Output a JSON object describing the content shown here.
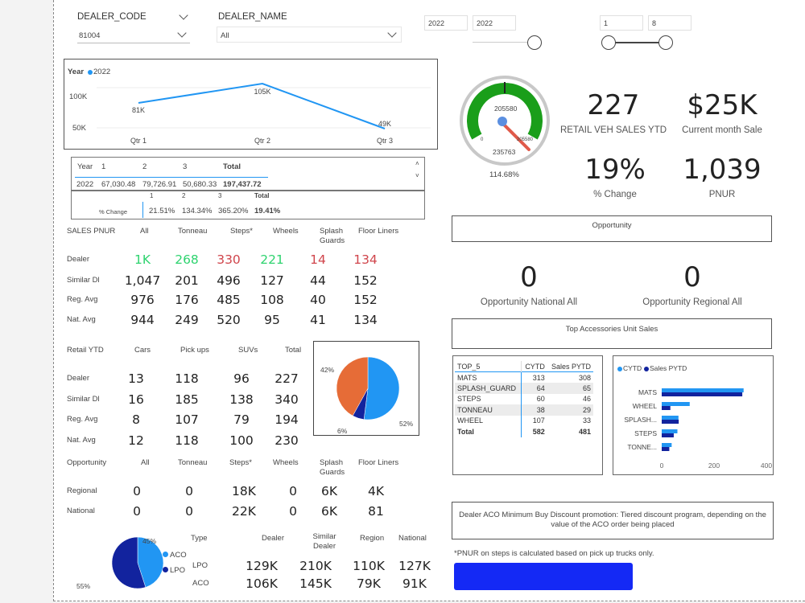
{
  "filters": {
    "dealer_code": {
      "label": "DEALER_CODE",
      "value": "81004"
    },
    "dealer_name": {
      "label": "DEALER_NAME",
      "value": "All"
    },
    "year_from": "2022",
    "year_to": "2022",
    "month_from": "1",
    "month_to": "8"
  },
  "line_chart": {
    "legend_title": "Year",
    "legend_item": "2022",
    "chart_data": {
      "type": "line",
      "categories": [
        "Qtr 1",
        "Qtr 2",
        "Qtr 3"
      ],
      "values": [
        81,
        105,
        49
      ],
      "value_labels": [
        "81K",
        "105K",
        "49K"
      ],
      "yticks": [
        "100K",
        "50K"
      ],
      "ylim": [
        30,
        120
      ]
    }
  },
  "year_table": {
    "headers": [
      "Year",
      "1",
      "2",
      "3",
      "Total"
    ],
    "row": [
      "2022",
      "67,030.48",
      "79,726.91",
      "50,680.33",
      "197,437.72"
    ]
  },
  "pct_table": {
    "headers": [
      "1",
      "2",
      "3",
      "Total"
    ],
    "row_label": "% Change",
    "row": [
      "21.51%",
      "134.34%",
      "365.20%",
      "19.41%"
    ]
  },
  "gauge": {
    "target": "205580",
    "max": "235763",
    "min": "0",
    "value_small": "205580",
    "percent": "114.68%",
    "chart_data": {
      "type": "gauge",
      "value": 235763,
      "target": 205580,
      "min": 0,
      "max": 235763
    }
  },
  "kpis": {
    "retail_sales": {
      "value": "227",
      "label": "RETAIL VEH SALES YTD"
    },
    "current_month": {
      "value": "$25K",
      "label": "Current month Sale"
    },
    "pct_change": {
      "value": "19%",
      "label": "% Change"
    },
    "pnur": {
      "value": "1,039",
      "label": "PNUR"
    }
  },
  "opportunity": {
    "title": "Opportunity",
    "national_value": "0",
    "national_label": "Opportunity National All",
    "regional_value": "0",
    "regional_label": "Opportunity Regional All"
  },
  "top_accessories_title": "Top Accessories Unit Sales",
  "sales_pnur": {
    "headers": [
      "SALES PNUR",
      "All",
      "Tonneau",
      "Steps*",
      "Wheels",
      "Splash Guards",
      "Floor Liners"
    ],
    "rows": [
      {
        "label": "Dealer",
        "values": [
          "1K",
          "268",
          "330",
          "221",
          "14",
          "134"
        ]
      },
      {
        "label": "Similar Dl",
        "values": [
          "1,047",
          "201",
          "496",
          "127",
          "44",
          "152"
        ]
      },
      {
        "label": "Reg. Avg",
        "values": [
          "976",
          "176",
          "485",
          "108",
          "40",
          "152"
        ]
      },
      {
        "label": "Nat. Avg",
        "values": [
          "944",
          "249",
          "520",
          "95",
          "41",
          "134"
        ]
      }
    ]
  },
  "retail_ytd": {
    "headers": [
      "Retail  YTD",
      "Cars",
      "Pick ups",
      "SUVs",
      "Total"
    ],
    "rows": [
      {
        "label": "Dealer",
        "values": [
          "13",
          "118",
          "96",
          "227"
        ]
      },
      {
        "label": "Similar Dl",
        "values": [
          "16",
          "185",
          "138",
          "340"
        ]
      },
      {
        "label": "Reg. Avg",
        "values": [
          "8",
          "107",
          "79",
          "194"
        ]
      },
      {
        "label": "Nat. Avg",
        "values": [
          "12",
          "118",
          "100",
          "230"
        ]
      }
    ]
  },
  "pie_retail": {
    "chart_data": {
      "type": "pie",
      "values": [
        52,
        6,
        42
      ],
      "labels": [
        "52%",
        "6%",
        "42%"
      ],
      "colors": [
        "#2196f3",
        "#12239e",
        "#e66c37"
      ]
    }
  },
  "opportunity_table": {
    "headers": [
      "Opportunity",
      "All",
      "Tonneau",
      "Steps*",
      "Wheels",
      "Splash Guards",
      "Floor Liners"
    ],
    "rows": [
      {
        "label": "Regional",
        "values": [
          "0",
          "0",
          "18K",
          "0",
          "6K",
          "4K"
        ]
      },
      {
        "label": "National",
        "values": [
          "0",
          "0",
          "22K",
          "0",
          "6K",
          "81"
        ]
      }
    ]
  },
  "top5": {
    "headers": [
      "TOP_5",
      "CYTD",
      "Sales PYTD"
    ],
    "rows": [
      [
        "MATS",
        "313",
        "308"
      ],
      [
        "SPLASH_GUARD",
        "64",
        "65"
      ],
      [
        "STEPS",
        "60",
        "46"
      ],
      [
        "TONNEAU",
        "38",
        "29"
      ],
      [
        "WHEEL",
        "107",
        "33"
      ]
    ],
    "total": [
      "Total",
      "582",
      "481"
    ]
  },
  "bar_chart": {
    "legend": [
      "CYTD",
      "Sales PYTD"
    ],
    "chart_data": {
      "type": "bar",
      "orientation": "horizontal",
      "categories": [
        "MATS",
        "WHEEL",
        "SPLASH...",
        "STEPS",
        "TONNE..."
      ],
      "series": [
        {
          "name": "CYTD",
          "values": [
            313,
            107,
            64,
            60,
            38
          ]
        },
        {
          "name": "Sales PYTD",
          "values": [
            308,
            33,
            65,
            46,
            29
          ]
        }
      ],
      "xticks": [
        "0",
        "200",
        "400"
      ],
      "xlim": [
        0,
        400
      ],
      "colors": [
        "#2196f3",
        "#12239e"
      ]
    }
  },
  "promo_text": "Dealer ACO Minimum Buy Discount promotion: Tiered discount program, depending on the value of the ACO order being placed",
  "footnote": "*PNUR on steps is calculated based on pick up trucks only.",
  "pie_aco": {
    "legend": [
      "ACO",
      "LPO"
    ],
    "chart_data": {
      "type": "pie",
      "values": [
        45,
        55
      ],
      "labels": [
        "45%",
        "55%"
      ],
      "colors": [
        "#2196f3",
        "#12239e"
      ]
    }
  },
  "type_table": {
    "headers": [
      "Type",
      "Dealer",
      "Similar Dealer",
      "Region",
      "National"
    ],
    "rows": [
      {
        "label": "LPO",
        "values": [
          "129K",
          "210K",
          "110K",
          "127K"
        ]
      },
      {
        "label": "ACO",
        "values": [
          "106K",
          "145K",
          "79K",
          "91K"
        ]
      }
    ]
  }
}
